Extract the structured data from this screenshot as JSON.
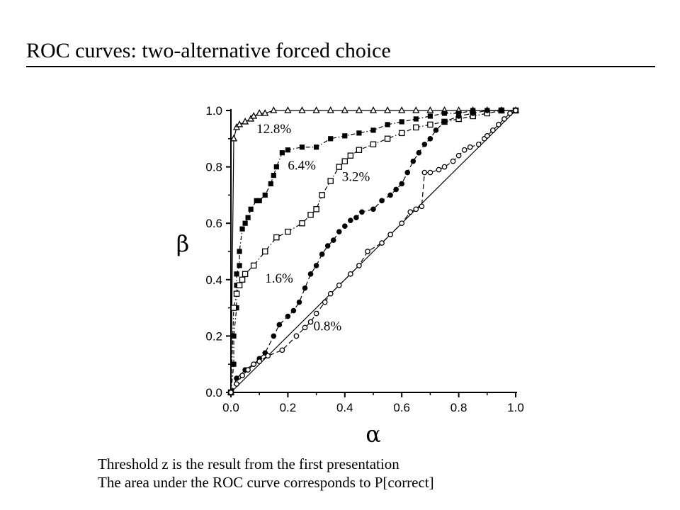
{
  "slide": {
    "title": "ROC curves: two-alternative forced choice",
    "captions": [
      "Threshold z is the result from the first presentation",
      "The area under the ROC curve corresponds to P[correct]"
    ]
  },
  "chart_data": {
    "type": "line",
    "title": "",
    "xlabel": "α",
    "ylabel": "β",
    "xlim": [
      0,
      1
    ],
    "ylim": [
      0,
      1
    ],
    "xticks": [
      "0.0",
      "0.2",
      "0.4",
      "0.6",
      "0.8",
      "1.0"
    ],
    "yticks": [
      "0.0",
      "0.2",
      "0.4",
      "0.6",
      "0.8",
      "1.0"
    ],
    "grid": false,
    "legend": "none (curves labeled directly)",
    "series": [
      {
        "name": "12.8%",
        "marker": "open-triangle",
        "line": "solid",
        "x": [
          0.0,
          0.01,
          0.02,
          0.03,
          0.05,
          0.07,
          0.08,
          0.1,
          0.12,
          0.15,
          0.2,
          0.25,
          0.3,
          0.35,
          0.4,
          0.45,
          0.5,
          0.55,
          0.6,
          0.65,
          0.7,
          0.75,
          0.8,
          0.85,
          0.9,
          0.95,
          1.0
        ],
        "y": [
          0.0,
          0.9,
          0.94,
          0.95,
          0.96,
          0.97,
          0.98,
          0.99,
          0.99,
          1.0,
          1.0,
          1.0,
          1.0,
          1.0,
          1.0,
          1.0,
          1.0,
          1.0,
          1.0,
          1.0,
          1.0,
          1.0,
          1.0,
          1.0,
          1.0,
          1.0,
          1.0
        ]
      },
      {
        "name": "6.4%",
        "marker": "filled-square",
        "line": "dash-dot",
        "x": [
          0.0,
          0.01,
          0.01,
          0.02,
          0.02,
          0.02,
          0.03,
          0.03,
          0.04,
          0.05,
          0.06,
          0.07,
          0.09,
          0.1,
          0.12,
          0.14,
          0.15,
          0.16,
          0.18,
          0.2,
          0.25,
          0.3,
          0.35,
          0.4,
          0.45,
          0.5,
          0.55,
          0.6,
          0.65,
          0.7,
          0.75,
          0.8,
          0.85,
          0.9,
          0.95,
          1.0
        ],
        "y": [
          0.0,
          0.1,
          0.2,
          0.3,
          0.38,
          0.42,
          0.45,
          0.5,
          0.58,
          0.6,
          0.62,
          0.65,
          0.68,
          0.68,
          0.7,
          0.74,
          0.77,
          0.8,
          0.85,
          0.86,
          0.87,
          0.87,
          0.9,
          0.91,
          0.92,
          0.93,
          0.95,
          0.96,
          0.97,
          0.98,
          0.99,
          0.99,
          1.0,
          1.0,
          1.0,
          1.0
        ]
      },
      {
        "name": "3.2%",
        "marker": "open-square",
        "line": "dash-dot",
        "x": [
          0.0,
          0.01,
          0.02,
          0.03,
          0.04,
          0.05,
          0.08,
          0.12,
          0.16,
          0.2,
          0.25,
          0.28,
          0.3,
          0.32,
          0.35,
          0.38,
          0.4,
          0.42,
          0.45,
          0.5,
          0.55,
          0.6,
          0.65,
          0.7,
          0.75,
          0.8,
          0.85,
          0.9,
          0.95,
          1.0
        ],
        "y": [
          0.0,
          0.3,
          0.35,
          0.38,
          0.4,
          0.42,
          0.45,
          0.5,
          0.55,
          0.57,
          0.6,
          0.63,
          0.65,
          0.7,
          0.75,
          0.8,
          0.82,
          0.84,
          0.86,
          0.88,
          0.9,
          0.92,
          0.94,
          0.95,
          0.96,
          0.97,
          0.98,
          0.99,
          1.0,
          1.0
        ]
      },
      {
        "name": "1.6%",
        "marker": "filled-circle",
        "line": "dashed",
        "x": [
          0.0,
          0.02,
          0.05,
          0.08,
          0.1,
          0.12,
          0.15,
          0.17,
          0.2,
          0.22,
          0.24,
          0.26,
          0.28,
          0.3,
          0.32,
          0.34,
          0.36,
          0.38,
          0.4,
          0.42,
          0.44,
          0.46,
          0.5,
          0.53,
          0.56,
          0.58,
          0.6,
          0.62,
          0.64,
          0.66,
          0.68,
          0.7,
          0.72,
          0.75,
          0.8,
          0.85,
          0.9,
          0.95,
          1.0
        ],
        "y": [
          0.0,
          0.05,
          0.08,
          0.1,
          0.12,
          0.14,
          0.2,
          0.24,
          0.27,
          0.29,
          0.32,
          0.37,
          0.42,
          0.45,
          0.49,
          0.52,
          0.54,
          0.57,
          0.59,
          0.61,
          0.62,
          0.64,
          0.65,
          0.68,
          0.7,
          0.72,
          0.74,
          0.78,
          0.82,
          0.85,
          0.88,
          0.9,
          0.93,
          0.96,
          0.98,
          0.99,
          1.0,
          1.0,
          1.0
        ]
      },
      {
        "name": "0.8%",
        "marker": "open-circle",
        "line": "dashed",
        "x": [
          0.0,
          0.02,
          0.04,
          0.06,
          0.08,
          0.1,
          0.13,
          0.18,
          0.23,
          0.26,
          0.28,
          0.3,
          0.33,
          0.35,
          0.38,
          0.42,
          0.45,
          0.48,
          0.53,
          0.56,
          0.6,
          0.63,
          0.65,
          0.67,
          0.68,
          0.7,
          0.73,
          0.75,
          0.78,
          0.8,
          0.82,
          0.84,
          0.87,
          0.89,
          0.9,
          0.92,
          0.94,
          0.96,
          0.98,
          1.0
        ],
        "y": [
          0.0,
          0.03,
          0.06,
          0.08,
          0.1,
          0.11,
          0.13,
          0.15,
          0.2,
          0.23,
          0.25,
          0.28,
          0.32,
          0.35,
          0.38,
          0.42,
          0.45,
          0.5,
          0.53,
          0.56,
          0.6,
          0.64,
          0.65,
          0.66,
          0.78,
          0.78,
          0.79,
          0.8,
          0.82,
          0.84,
          0.86,
          0.87,
          0.88,
          0.9,
          0.91,
          0.93,
          0.95,
          0.97,
          0.99,
          1.0
        ]
      },
      {
        "name": "",
        "marker": "none",
        "line": "solid",
        "x": [
          0.0,
          1.0
        ],
        "y": [
          0.0,
          1.0
        ]
      }
    ]
  }
}
